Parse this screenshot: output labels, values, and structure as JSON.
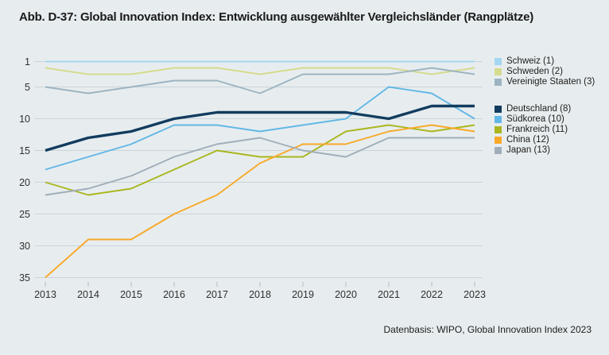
{
  "title": "Abb. D-37: Global Innovation Index: Entwicklung ausgewählter Vergleichsländer (Rangplätze)",
  "source_note": "Datenbasis: WIPO, Global Innovation Index 2023",
  "colors": {
    "background": "#e7edef",
    "grid": "#c9d4d9",
    "tick": "#aebcc4",
    "axis_text": "#2f2f2f",
    "title_text": "#191919",
    "legend_text": "#1d1d1b"
  },
  "chart_data": {
    "type": "line",
    "title": "Global Innovation Index: Entwicklung ausgewählter Vergleichsländer (Rangplätze)",
    "x": [
      2013,
      2014,
      2015,
      2016,
      2017,
      2018,
      2019,
      2020,
      2021,
      2022,
      2023
    ],
    "y_ticks": [
      1,
      5,
      10,
      15,
      20,
      25,
      30,
      35
    ],
    "y_axis_inverted": true,
    "y_range": [
      1,
      35
    ],
    "grid": true,
    "legend_position": "top-right",
    "series": [
      {
        "id": "schweiz",
        "name": "Schweiz",
        "legend_label": "Schweiz (1)",
        "color": "#a5d7f0",
        "thick": false,
        "legend_group": 0,
        "values": [
          1,
          1,
          1,
          1,
          1,
          1,
          1,
          1,
          1,
          1,
          1
        ]
      },
      {
        "id": "schweden",
        "name": "Schweden",
        "legend_label": "Schweden (2)",
        "color": "#d6db8d",
        "thick": false,
        "legend_group": 0,
        "values": [
          2,
          3,
          3,
          2,
          2,
          3,
          2,
          2,
          2,
          3,
          2
        ]
      },
      {
        "id": "vereinigte-staaten",
        "name": "Vereinigte Staaten",
        "legend_label": "Vereinigte Staaten (3)",
        "color": "#9db4c2",
        "thick": false,
        "legend_group": 0,
        "values": [
          5,
          6,
          5,
          4,
          4,
          6,
          3,
          3,
          3,
          2,
          3
        ]
      },
      {
        "id": "deutschland",
        "name": "Deutschland",
        "legend_label": "Deutschland (8)",
        "color": "#123c5e",
        "thick": true,
        "legend_group": 1,
        "values": [
          15,
          13,
          12,
          10,
          9,
          9,
          9,
          9,
          10,
          8,
          8
        ]
      },
      {
        "id": "suedkorea",
        "name": "Südkorea",
        "legend_label": "Südkorea (10)",
        "color": "#63b7e6",
        "thick": false,
        "legend_group": 1,
        "values": [
          18,
          16,
          14,
          11,
          11,
          12,
          11,
          10,
          5,
          6,
          10
        ]
      },
      {
        "id": "frankreich",
        "name": "Frankreich",
        "legend_label": "Frankreich (11)",
        "color": "#aab71f",
        "thick": false,
        "legend_group": 1,
        "values": [
          20,
          22,
          21,
          18,
          15,
          16,
          16,
          12,
          11,
          12,
          11
        ]
      },
      {
        "id": "china",
        "name": "China",
        "legend_label": "China (12)",
        "color": "#f8a929",
        "thick": false,
        "legend_group": 1,
        "values": [
          35,
          29,
          29,
          25,
          22,
          17,
          14,
          14,
          12,
          11,
          12
        ]
      },
      {
        "id": "japan",
        "name": "Japan",
        "legend_label": "Japan (13)",
        "color": "#a0aeb9",
        "thick": false,
        "legend_group": 1,
        "values": [
          22,
          21,
          19,
          16,
          14,
          13,
          15,
          16,
          13,
          13,
          13
        ]
      }
    ]
  }
}
